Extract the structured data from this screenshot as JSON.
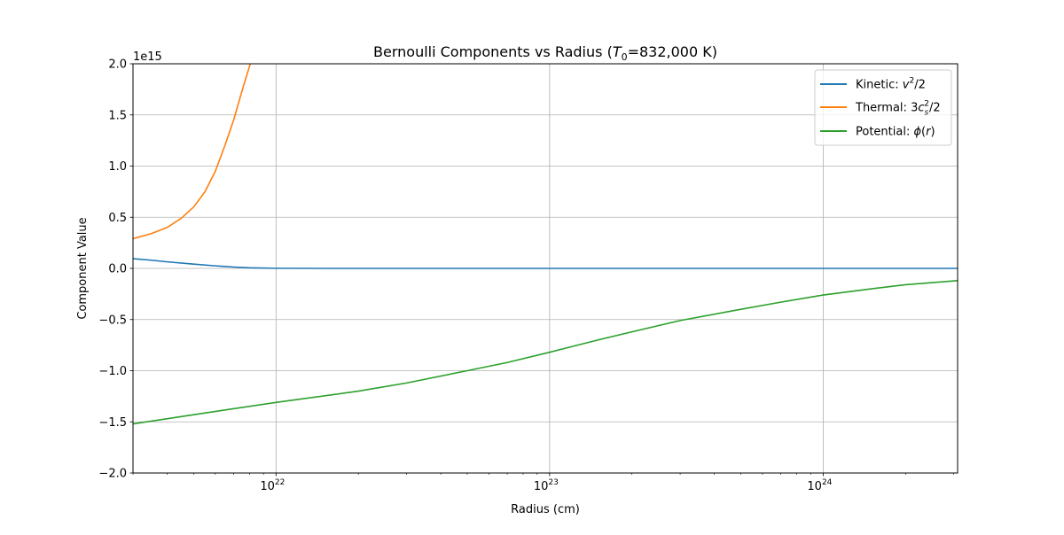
{
  "chart_data": {
    "type": "line",
    "title": "Bernoulli Components vs Radius (T₀=832,000 K)",
    "xlabel": "Radius (cm)",
    "ylabel": "Component Value",
    "x_scale": "log",
    "xlim": [
      3e+21,
      3.1e+24
    ],
    "ylim": [
      -2000000000000000.0,
      2000000000000000.0
    ],
    "y_offset_text": "1e15",
    "x_ticks": [
      {
        "value": 1e+22,
        "base": "10",
        "exp": "22"
      },
      {
        "value": 1e+23,
        "base": "10",
        "exp": "23"
      },
      {
        "value": 1e+24,
        "base": "10",
        "exp": "24"
      }
    ],
    "y_ticks": [
      {
        "value": 2000000000000000.0,
        "label": "2.0"
      },
      {
        "value": 1500000000000000.0,
        "label": "1.5"
      },
      {
        "value": 1000000000000000.0,
        "label": "1.0"
      },
      {
        "value": 500000000000000.0,
        "label": "0.5"
      },
      {
        "value": 0.0,
        "label": "0.0"
      },
      {
        "value": -500000000000000.0,
        "label": "−0.5"
      },
      {
        "value": -1000000000000000.0,
        "label": "−1.0"
      },
      {
        "value": -1500000000000000.0,
        "label": "−1.5"
      },
      {
        "value": -2000000000000000.0,
        "label": "−2.0"
      }
    ],
    "grid": true,
    "legend_position": "top-right",
    "series": [
      {
        "name": "Kinetic: v²/2",
        "color": "#1f77b4",
        "points": [
          [
            3e+21,
            95000000000000.0
          ],
          [
            3.5e+21,
            80000000000000.0
          ],
          [
            4e+21,
            64000000000000.0
          ],
          [
            5e+21,
            42000000000000.0
          ],
          [
            6e+21,
            25000000000000.0
          ],
          [
            7e+21,
            13000000000000.0
          ],
          [
            8e+21,
            6000000000000.0
          ],
          [
            1e+22,
            1000000000000.0
          ],
          [
            1.5e+22,
            0.0
          ],
          [
            1e+23,
            0.0
          ],
          [
            1e+24,
            0.0
          ],
          [
            3.1e+24,
            0.0
          ]
        ]
      },
      {
        "name": "Thermal: 3cₛ²/2",
        "color": "#ff7f0e",
        "points": [
          [
            3e+21,
            290000000000000.0
          ],
          [
            3.5e+21,
            340000000000000.0
          ],
          [
            4e+21,
            400000000000000.0
          ],
          [
            4.5e+21,
            490000000000000.0
          ],
          [
            5e+21,
            600000000000000.0
          ],
          [
            5.5e+21,
            750000000000000.0
          ],
          [
            6e+21,
            950000000000000.0
          ],
          [
            6.5e+21,
            1200000000000000.0
          ],
          [
            7e+21,
            1450000000000000.0
          ],
          [
            7.5e+21,
            1730000000000000.0
          ],
          [
            8.05e+21,
            2000000000000000.0
          ]
        ]
      },
      {
        "name": "Potential: ϕ(r)",
        "color": "#2ca02c",
        "points": [
          [
            3e+21,
            -1520000000000000.0
          ],
          [
            5e+21,
            -1430000000000000.0
          ],
          [
            1e+22,
            -1310000000000000.0
          ],
          [
            2e+22,
            -1200000000000000.0
          ],
          [
            3e+22,
            -1120000000000000.0
          ],
          [
            5e+22,
            -1000000000000000.0
          ],
          [
            7e+22,
            -920000000000000.0
          ],
          [
            1e+23,
            -820000000000000.0
          ],
          [
            1.5e+23,
            -700000000000000.0
          ],
          [
            2e+23,
            -620000000000000.0
          ],
          [
            3e+23,
            -510000000000000.0
          ],
          [
            5e+23,
            -400000000000000.0
          ],
          [
            7e+23,
            -330000000000000.0
          ],
          [
            1e+24,
            -260000000000000.0
          ],
          [
            1.5e+24,
            -200000000000000.0
          ],
          [
            2e+24,
            -160000000000000.0
          ],
          [
            3.1e+24,
            -120000000000000.0
          ]
        ]
      }
    ]
  },
  "legend": {
    "kinetic_prefix": "Kinetic: ",
    "thermal_prefix": "Thermal: ",
    "potential_prefix": "Potential: "
  },
  "title_parts": {
    "before": "Bernoulli Components vs Radius (",
    "symbol": "T",
    "subscript": "0",
    "after": "=832,000 K)"
  }
}
